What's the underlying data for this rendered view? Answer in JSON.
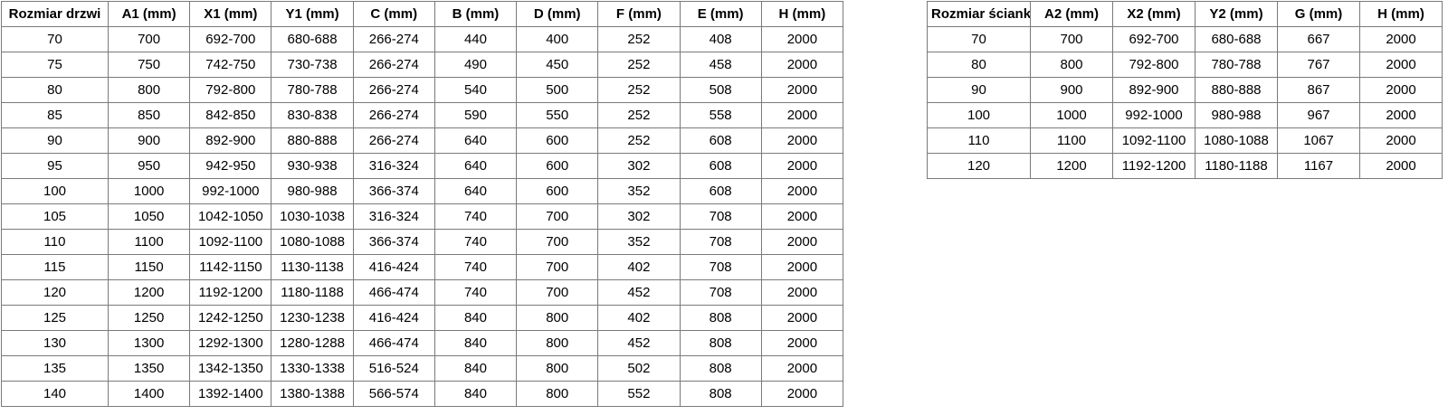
{
  "colors": {
    "border": "#7a7a7a",
    "border_shadow": "#c9c9c9",
    "text": "#000000",
    "background": "#ffffff"
  },
  "door_table": {
    "name": "door-size-table",
    "headers": [
      "Rozmiar drzwi",
      "A1 (mm)",
      "X1 (mm)",
      "Y1 (mm)",
      "C (mm)",
      "B (mm)",
      "D (mm)",
      "F (mm)",
      "E (mm)",
      "H (mm)"
    ],
    "rows": [
      [
        "70",
        "700",
        "692-700",
        "680-688",
        "266-274",
        "440",
        "400",
        "252",
        "408",
        "2000"
      ],
      [
        "75",
        "750",
        "742-750",
        "730-738",
        "266-274",
        "490",
        "450",
        "252",
        "458",
        "2000"
      ],
      [
        "80",
        "800",
        "792-800",
        "780-788",
        "266-274",
        "540",
        "500",
        "252",
        "508",
        "2000"
      ],
      [
        "85",
        "850",
        "842-850",
        "830-838",
        "266-274",
        "590",
        "550",
        "252",
        "558",
        "2000"
      ],
      [
        "90",
        "900",
        "892-900",
        "880-888",
        "266-274",
        "640",
        "600",
        "252",
        "608",
        "2000"
      ],
      [
        "95",
        "950",
        "942-950",
        "930-938",
        "316-324",
        "640",
        "600",
        "302",
        "608",
        "2000"
      ],
      [
        "100",
        "1000",
        "992-1000",
        "980-988",
        "366-374",
        "640",
        "600",
        "352",
        "608",
        "2000"
      ],
      [
        "105",
        "1050",
        "1042-1050",
        "1030-1038",
        "316-324",
        "740",
        "700",
        "302",
        "708",
        "2000"
      ],
      [
        "110",
        "1100",
        "1092-1100",
        "1080-1088",
        "366-374",
        "740",
        "700",
        "352",
        "708",
        "2000"
      ],
      [
        "115",
        "1150",
        "1142-1150",
        "1130-1138",
        "416-424",
        "740",
        "700",
        "402",
        "708",
        "2000"
      ],
      [
        "120",
        "1200",
        "1192-1200",
        "1180-1188",
        "466-474",
        "740",
        "700",
        "452",
        "708",
        "2000"
      ],
      [
        "125",
        "1250",
        "1242-1250",
        "1230-1238",
        "416-424",
        "840",
        "800",
        "402",
        "808",
        "2000"
      ],
      [
        "130",
        "1300",
        "1292-1300",
        "1280-1288",
        "466-474",
        "840",
        "800",
        "452",
        "808",
        "2000"
      ],
      [
        "135",
        "1350",
        "1342-1350",
        "1330-1338",
        "516-524",
        "840",
        "800",
        "502",
        "808",
        "2000"
      ],
      [
        "140",
        "1400",
        "1392-1400",
        "1380-1388",
        "566-574",
        "840",
        "800",
        "552",
        "808",
        "2000"
      ]
    ]
  },
  "wall_table": {
    "name": "wall-size-table",
    "headers": [
      "Rozmiar ścianki",
      "A2 (mm)",
      "X2 (mm)",
      "Y2 (mm)",
      "G (mm)",
      "H (mm)"
    ],
    "rows": [
      [
        "70",
        "700",
        "692-700",
        "680-688",
        "667",
        "2000"
      ],
      [
        "80",
        "800",
        "792-800",
        "780-788",
        "767",
        "2000"
      ],
      [
        "90",
        "900",
        "892-900",
        "880-888",
        "867",
        "2000"
      ],
      [
        "100",
        "1000",
        "992-1000",
        "980-988",
        "967",
        "2000"
      ],
      [
        "110",
        "1100",
        "1092-1100",
        "1080-1088",
        "1067",
        "2000"
      ],
      [
        "120",
        "1200",
        "1192-1200",
        "1180-1188",
        "1167",
        "2000"
      ]
    ]
  }
}
